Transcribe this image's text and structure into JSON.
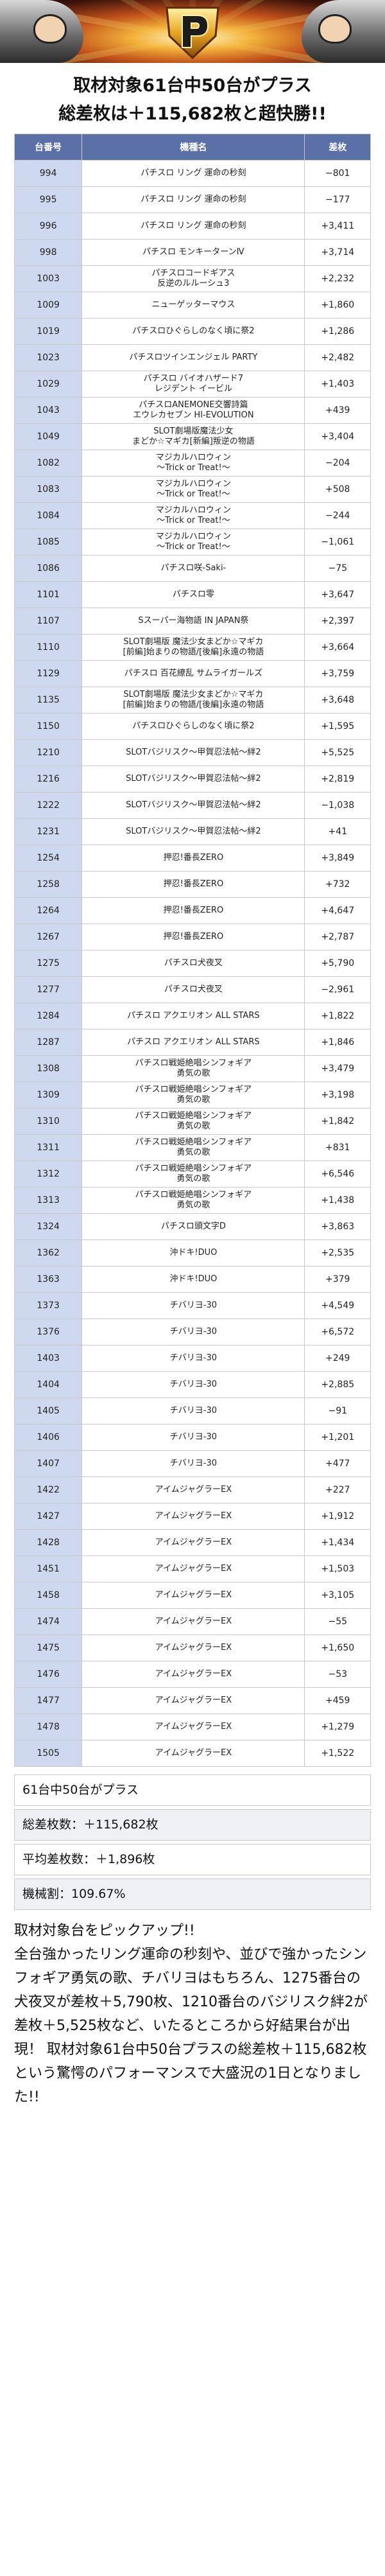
{
  "headline": {
    "line1": "取材対象61台中50台がプラス",
    "line2": "総差枚は＋115,682枚と超快勝!!"
  },
  "table": {
    "headers": [
      "台番号",
      "機種名",
      "差枚"
    ],
    "rows": [
      {
        "no": "994",
        "name": "パチスロ リング 運命の秒刻",
        "diff": "−801"
      },
      {
        "no": "995",
        "name": "パチスロ リング 運命の秒刻",
        "diff": "−177"
      },
      {
        "no": "996",
        "name": "パチスロ リング 運命の秒刻",
        "diff": "+3,411"
      },
      {
        "no": "998",
        "name": "パチスロ モンキーターンⅣ",
        "diff": "+3,714"
      },
      {
        "no": "1003",
        "name": "パチスロコードギアス\n反逆のルルーシュ3",
        "diff": "+2,232"
      },
      {
        "no": "1009",
        "name": "ニューゲッターマウス",
        "diff": "+1,860"
      },
      {
        "no": "1019",
        "name": "パチスロひぐらしのなく頃に祭2",
        "diff": "+1,286"
      },
      {
        "no": "1023",
        "name": "パチスロツインエンジェル PARTY",
        "diff": "+2,482"
      },
      {
        "no": "1029",
        "name": "パチスロ バイオハザード7\nレジデント イービル",
        "diff": "+1,403"
      },
      {
        "no": "1043",
        "name": "パチスロANEMONE交響詩篇\nエウレカセブン HI-EVOLUTION",
        "diff": "+439"
      },
      {
        "no": "1049",
        "name": "SLOT劇場版魔法少女\nまどか☆マギカ[新編]叛逆の物語",
        "diff": "+3,404"
      },
      {
        "no": "1082",
        "name": "マジカルハロウィン\n〜Trick or Treat!〜",
        "diff": "−204"
      },
      {
        "no": "1083",
        "name": "マジカルハロウィン\n〜Trick or Treat!〜",
        "diff": "+508"
      },
      {
        "no": "1084",
        "name": "マジカルハロウィン\n〜Trick or Treat!〜",
        "diff": "−244"
      },
      {
        "no": "1085",
        "name": "マジカルハロウィン\n〜Trick or Treat!〜",
        "diff": "−1,061"
      },
      {
        "no": "1086",
        "name": "パチスロ咲-Saki-",
        "diff": "−75"
      },
      {
        "no": "1101",
        "name": "パチスロ零",
        "diff": "+3,647"
      },
      {
        "no": "1107",
        "name": "Sスーパー海物語 IN JAPAN祭",
        "diff": "+2,397"
      },
      {
        "no": "1110",
        "name": "SLOT劇場版 魔法少女まどか☆マギカ\n[前編]始まりの物語/[後編]永遠の物語",
        "diff": "+3,664"
      },
      {
        "no": "1129",
        "name": "パチスロ 百花繚乱 サムライガールズ",
        "diff": "+3,759"
      },
      {
        "no": "1135",
        "name": "SLOT劇場版 魔法少女まどか☆マギカ\n[前編]始まりの物語/[後編]永遠の物語",
        "diff": "+3,648"
      },
      {
        "no": "1150",
        "name": "パチスロひぐらしのなく頃に祭2",
        "diff": "+1,595"
      },
      {
        "no": "1210",
        "name": "SLOTバジリスク〜甲賀忍法帖〜絆2",
        "diff": "+5,525"
      },
      {
        "no": "1216",
        "name": "SLOTバジリスク〜甲賀忍法帖〜絆2",
        "diff": "+2,819"
      },
      {
        "no": "1222",
        "name": "SLOTバジリスク〜甲賀忍法帖〜絆2",
        "diff": "−1,038"
      },
      {
        "no": "1231",
        "name": "SLOTバジリスク〜甲賀忍法帖〜絆2",
        "diff": "+41"
      },
      {
        "no": "1254",
        "name": "押忍!番長ZERO",
        "diff": "+3,849"
      },
      {
        "no": "1258",
        "name": "押忍!番長ZERO",
        "diff": "+732"
      },
      {
        "no": "1264",
        "name": "押忍!番長ZERO",
        "diff": "+4,647"
      },
      {
        "no": "1267",
        "name": "押忍!番長ZERO",
        "diff": "+2,787"
      },
      {
        "no": "1275",
        "name": "パチスロ犬夜叉",
        "diff": "+5,790"
      },
      {
        "no": "1277",
        "name": "パチスロ犬夜叉",
        "diff": "−2,961"
      },
      {
        "no": "1284",
        "name": "パチスロ アクエリオン ALL STARS",
        "diff": "+1,822"
      },
      {
        "no": "1287",
        "name": "パチスロ アクエリオン ALL STARS",
        "diff": "+1,846"
      },
      {
        "no": "1308",
        "name": "パチスロ戦姫絶唱シンフォギア\n勇気の歌",
        "diff": "+3,479"
      },
      {
        "no": "1309",
        "name": "パチスロ戦姫絶唱シンフォギア\n勇気の歌",
        "diff": "+3,198"
      },
      {
        "no": "1310",
        "name": "パチスロ戦姫絶唱シンフォギア\n勇気の歌",
        "diff": "+1,842"
      },
      {
        "no": "1311",
        "name": "パチスロ戦姫絶唱シンフォギア\n勇気の歌",
        "diff": "+831"
      },
      {
        "no": "1312",
        "name": "パチスロ戦姫絶唱シンフォギア\n勇気の歌",
        "diff": "+6,546"
      },
      {
        "no": "1313",
        "name": "パチスロ戦姫絶唱シンフォギア\n勇気の歌",
        "diff": "+1,438"
      },
      {
        "no": "1324",
        "name": "パチスロ頭文字D",
        "diff": "+3,863"
      },
      {
        "no": "1362",
        "name": "沖ドキ!DUO",
        "diff": "+2,535"
      },
      {
        "no": "1363",
        "name": "沖ドキ!DUO",
        "diff": "+379"
      },
      {
        "no": "1373",
        "name": "チバリヨ-30",
        "diff": "+4,549"
      },
      {
        "no": "1376",
        "name": "チバリヨ-30",
        "diff": "+6,572"
      },
      {
        "no": "1403",
        "name": "チバリヨ-30",
        "diff": "+249"
      },
      {
        "no": "1404",
        "name": "チバリヨ-30",
        "diff": "+2,885"
      },
      {
        "no": "1405",
        "name": "チバリヨ-30",
        "diff": "−91"
      },
      {
        "no": "1406",
        "name": "チバリヨ-30",
        "diff": "+1,201"
      },
      {
        "no": "1407",
        "name": "チバリヨ-30",
        "diff": "+477"
      },
      {
        "no": "1422",
        "name": "アイムジャグラーEX",
        "diff": "+227"
      },
      {
        "no": "1427",
        "name": "アイムジャグラーEX",
        "diff": "+1,912"
      },
      {
        "no": "1428",
        "name": "アイムジャグラーEX",
        "diff": "+1,434"
      },
      {
        "no": "1451",
        "name": "アイムジャグラーEX",
        "diff": "+1,503"
      },
      {
        "no": "1458",
        "name": "アイムジャグラーEX",
        "diff": "+3,105"
      },
      {
        "no": "1474",
        "name": "アイムジャグラーEX",
        "diff": "−55"
      },
      {
        "no": "1475",
        "name": "アイムジャグラーEX",
        "diff": "+1,650"
      },
      {
        "no": "1476",
        "name": "アイムジャグラーEX",
        "diff": "−53"
      },
      {
        "no": "1477",
        "name": "アイムジャグラーEX",
        "diff": "+459"
      },
      {
        "no": "1478",
        "name": "アイムジャグラーEX",
        "diff": "+1,279"
      },
      {
        "no": "1505",
        "name": "アイムジャグラーEX",
        "diff": "+1,522"
      }
    ]
  },
  "summary": {
    "plus_count": "61台中50台がプラス",
    "total": "総差枚数：＋115,682枚",
    "average": "平均差枚数：＋1,896枚",
    "payout_rate": "機械割：109.67%"
  },
  "pickup": {
    "text": "取材対象台をピックアップ!!\n全台強かったリング運命の秒刻や、並びで強かったシンフォギア勇気の歌、チバリヨはもちろん、1275番台の犬夜叉が差枚＋5,790枚、1210番台のバジリスク絆2が差枚＋5,525枚など、いたるところから好結果台が出現！ 取材対象61台中50台プラスの総差枚＋115,682枚という驚愕のパフォーマンスで大盛況の1日となりました!!"
  }
}
